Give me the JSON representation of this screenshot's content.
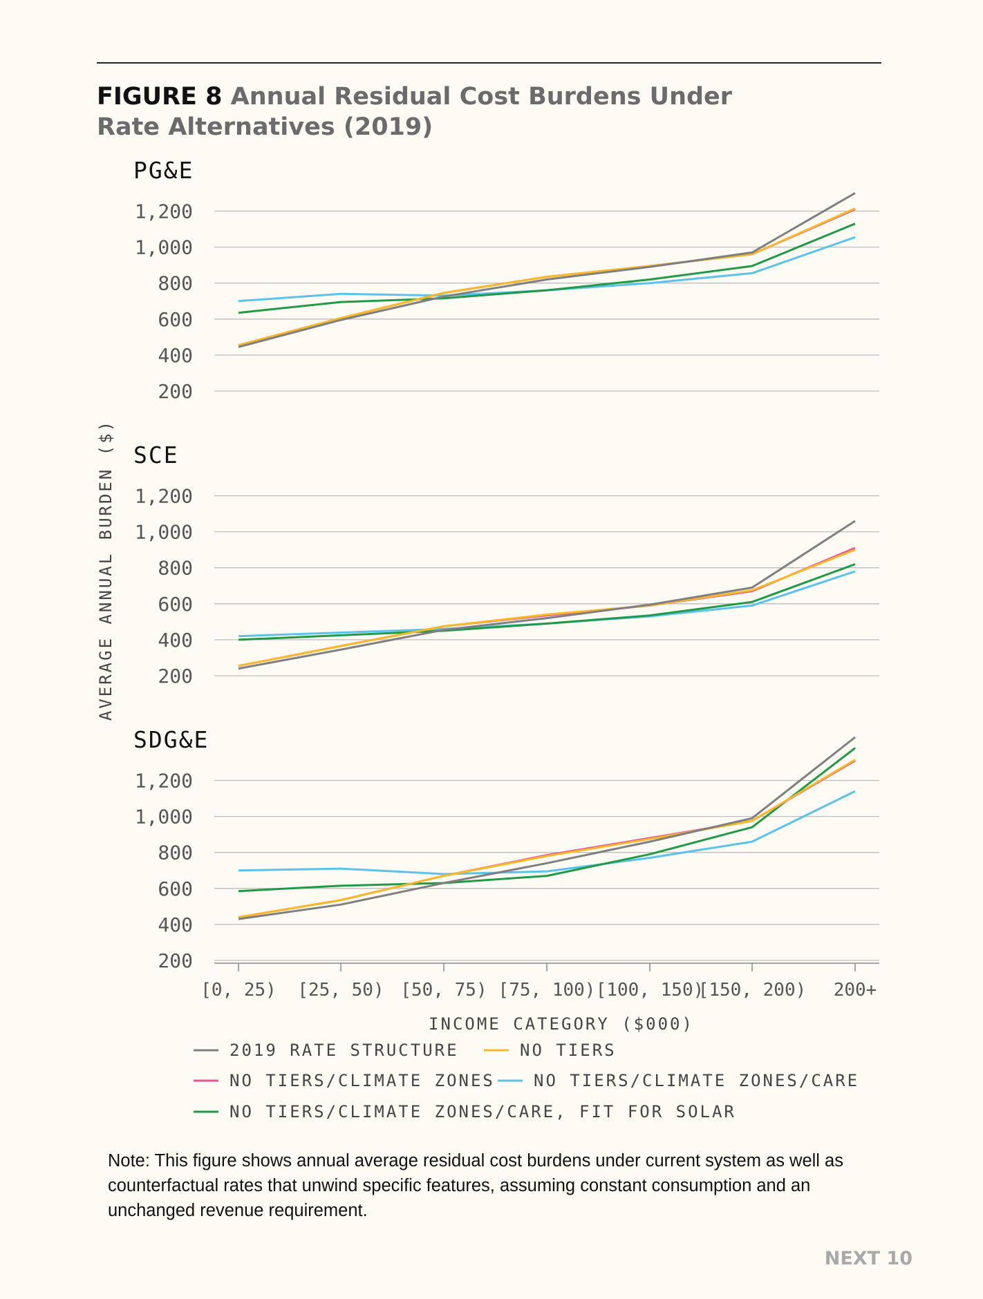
{
  "figure": {
    "number": "FIGURE 8",
    "title": "Annual Residual Cost Burdens Under Rate Alternatives (2019)"
  },
  "chart_data": {
    "type": "line",
    "ylabel": "AVERAGE ANNUAL BURDEN ($)",
    "xlabel": "INCOME CATEGORY ($000)",
    "categories": [
      "[0, 25)",
      "[25, 50)",
      "[50, 75)",
      "[75, 100)",
      "[100, 150)",
      "[150, 200)",
      "200+"
    ],
    "yticks": [
      200,
      400,
      600,
      800,
      1000,
      1200
    ],
    "ytick_labels": [
      "200",
      "400",
      "600",
      "800",
      "1,000",
      "1,200"
    ],
    "ylim": [
      180,
      1350
    ],
    "grid": true,
    "legend_position": "bottom",
    "legend": [
      {
        "name": "2019 RATE STRUCTURE",
        "color": "#7f7f7f"
      },
      {
        "name": "NO TIERS",
        "color": "#f7b928"
      },
      {
        "name": "NO TIERS/CLIMATE ZONES",
        "color": "#e8559b"
      },
      {
        "name": "NO TIERS/CLIMATE ZONES/CARE",
        "color": "#5bc2ec"
      },
      {
        "name": "NO TIERS/CLIMATE ZONES/CARE, FIT FOR SOLAR",
        "color": "#1f9a46"
      }
    ],
    "panels": [
      {
        "title": "PG&E",
        "series": [
          {
            "name": "NO TIERS/CLIMATE ZONES/CARE",
            "values": [
              700,
              740,
              730,
              760,
              800,
              855,
              1055
            ]
          },
          {
            "name": "NO TIERS/CLIMATE ZONES/CARE, FIT FOR SOLAR",
            "values": [
              635,
              695,
              715,
              760,
              820,
              895,
              1130
            ]
          },
          {
            "name": "NO TIERS/CLIMATE ZONES",
            "values": [
              455,
              605,
              745,
              835,
              895,
              960,
              1210
            ]
          },
          {
            "name": "NO TIERS",
            "values": [
              455,
              605,
              745,
              835,
              895,
              960,
              1215
            ]
          },
          {
            "name": "2019 RATE STRUCTURE",
            "values": [
              445,
              595,
              725,
              820,
              890,
              970,
              1300
            ]
          }
        ]
      },
      {
        "title": "SCE",
        "series": [
          {
            "name": "NO TIERS/CLIMATE ZONES/CARE",
            "values": [
              420,
              440,
              460,
              490,
              530,
              590,
              780
            ]
          },
          {
            "name": "NO TIERS/CLIMATE ZONES/CARE, FIT FOR SOLAR",
            "values": [
              400,
              425,
              450,
              490,
              535,
              610,
              820
            ]
          },
          {
            "name": "NO TIERS/CLIMATE ZONES",
            "values": [
              255,
              365,
              475,
              535,
              590,
              670,
              910
            ]
          },
          {
            "name": "NO TIERS",
            "values": [
              255,
              365,
              475,
              540,
              590,
              675,
              900
            ]
          },
          {
            "name": "2019 RATE STRUCTURE",
            "values": [
              240,
              345,
              455,
              520,
              595,
              690,
              1060
            ]
          }
        ]
      },
      {
        "title": "SDG&E",
        "series": [
          {
            "name": "NO TIERS/CLIMATE ZONES/CARE",
            "values": [
              700,
              710,
              680,
              695,
              770,
              860,
              1140
            ]
          },
          {
            "name": "NO TIERS/CLIMATE ZONES/CARE, FIT FOR SOLAR",
            "values": [
              585,
              615,
              630,
              670,
              790,
              940,
              1380
            ]
          },
          {
            "name": "NO TIERS/CLIMATE ZONES",
            "values": [
              440,
              535,
              670,
              785,
              880,
              975,
              1310
            ]
          },
          {
            "name": "NO TIERS",
            "values": [
              440,
              535,
              670,
              780,
              875,
              975,
              1315
            ]
          },
          {
            "name": "2019 RATE STRUCTURE",
            "values": [
              430,
              510,
              630,
              740,
              860,
              990,
              1440
            ]
          }
        ]
      }
    ]
  },
  "note": "Note: This figure shows annual average residual cost burdens under current system as well as counterfactual rates that unwind specific features, assuming constant consumption and an unchanged revenue requirement.",
  "footer": "NEXT 10"
}
